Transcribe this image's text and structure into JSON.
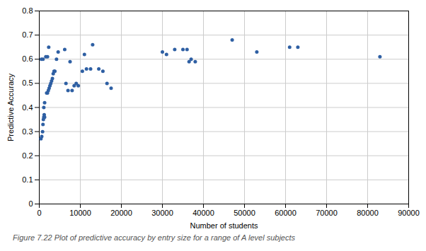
{
  "chart_data": {
    "type": "scatter",
    "caption": "Figure 7.22 Plot of predictive accuracy by entry size for a range of A level subjects",
    "xlabel": "Number of students",
    "ylabel": "Predictive Accuracy",
    "x": [
      400,
      600,
      800,
      900,
      1000,
      1100,
      1200,
      1300,
      1100,
      1300,
      1800,
      2000,
      2200,
      2400,
      2600,
      2800,
      3000,
      3200,
      3400,
      3600,
      3800,
      500,
      900,
      1600,
      2000,
      4200,
      2300,
      4600,
      6200,
      7500,
      6500,
      7000,
      8000,
      8500,
      9000,
      9500,
      10500,
      11500,
      12500,
      11000,
      13000,
      14500,
      15500,
      16500,
      17500,
      30000,
      31000,
      33000,
      35000,
      36000,
      36500,
      37000,
      38000,
      47000,
      53000,
      61000,
      63000,
      83000
    ],
    "values": [
      0.27,
      0.28,
      0.3,
      0.33,
      0.35,
      0.36,
      0.37,
      0.36,
      0.4,
      0.42,
      0.46,
      0.46,
      0.47,
      0.48,
      0.49,
      0.5,
      0.51,
      0.52,
      0.54,
      0.55,
      0.55,
      0.6,
      0.6,
      0.61,
      0.61,
      0.6,
      0.65,
      0.63,
      0.64,
      0.59,
      0.5,
      0.47,
      0.47,
      0.49,
      0.5,
      0.49,
      0.55,
      0.56,
      0.56,
      0.62,
      0.66,
      0.56,
      0.55,
      0.5,
      0.48,
      0.63,
      0.62,
      0.64,
      0.64,
      0.64,
      0.59,
      0.6,
      0.59,
      0.68,
      0.63,
      0.65,
      0.65,
      0.61
    ],
    "color": "#2e5fa3",
    "xlim": [
      0,
      90000
    ],
    "ylim": [
      0,
      0.8
    ],
    "xticks": [
      0,
      10000,
      20000,
      30000,
      40000,
      50000,
      60000,
      70000,
      80000,
      90000
    ],
    "yticks": [
      0,
      0.1,
      0.2,
      0.3,
      0.4,
      0.5,
      0.6,
      0.7,
      0.8
    ],
    "grid": true
  }
}
